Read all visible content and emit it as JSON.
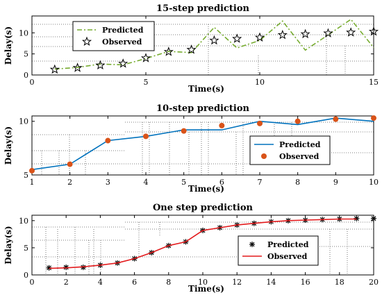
{
  "chart_data": [
    {
      "type": "line",
      "title": "15-step prediction",
      "xlabel": "Time(s)",
      "ylabel": "Delay(s)",
      "xlim": [
        0,
        15
      ],
      "ylim": [
        0,
        14
      ],
      "xticks": [
        0,
        5,
        10,
        15
      ],
      "yticks": [
        0,
        5,
        10
      ],
      "legend_position": "top-left",
      "series": [
        {
          "name": "Predicted",
          "style": "dash-dot line",
          "color": "#77AC30",
          "x": [
            1,
            2,
            3,
            4,
            5,
            6,
            7,
            8,
            9,
            10,
            11,
            12,
            13,
            14,
            15
          ],
          "y": [
            1.4,
            1.8,
            2.6,
            2.4,
            3.9,
            5.6,
            5.3,
            11.3,
            6.4,
            8.2,
            12.8,
            5.9,
            9.5,
            13.2,
            6.5
          ]
        },
        {
          "name": "Observed",
          "marker": "pentagram",
          "color": "#000000",
          "x": [
            1,
            2,
            3,
            4,
            5,
            6,
            7,
            8,
            9,
            10,
            11,
            12,
            13,
            14,
            15
          ],
          "y": [
            1.3,
            1.7,
            2.3,
            2.7,
            4.0,
            5.5,
            6.0,
            8.2,
            8.6,
            8.9,
            9.5,
            9.7,
            9.9,
            10.1,
            10.3
          ]
        }
      ]
    },
    {
      "type": "line",
      "title": "10-step prediction",
      "xlabel": "Time(s)",
      "ylabel": "Delay(s)",
      "xlim": [
        1,
        10
      ],
      "ylim": [
        5,
        10.5
      ],
      "xticks": [
        1,
        2,
        3,
        4,
        5,
        6,
        7,
        8,
        9,
        10
      ],
      "yticks": [
        5,
        10
      ],
      "legend_position": "bottom-right",
      "series": [
        {
          "name": "Predicted",
          "style": "solid line",
          "color": "#0072BD",
          "x": [
            1,
            2,
            3,
            4,
            5,
            6,
            7,
            8,
            9,
            10
          ],
          "y": [
            5.5,
            6.0,
            8.2,
            8.6,
            9.2,
            9.2,
            10.0,
            9.7,
            10.3,
            10.0
          ]
        },
        {
          "name": "Observed",
          "marker": "filled circle",
          "color": "#D95319",
          "x": [
            1,
            2,
            3,
            4,
            5,
            6,
            7,
            8,
            9,
            10
          ],
          "y": [
            5.4,
            6.0,
            8.2,
            8.6,
            9.1,
            9.6,
            9.8,
            10.0,
            10.2,
            10.3
          ]
        }
      ]
    },
    {
      "type": "line",
      "title": "One step prediction",
      "xlabel": "Time(s)",
      "ylabel": "Delay(s)",
      "xlim": [
        0,
        20
      ],
      "ylim": [
        0,
        11
      ],
      "xticks": [
        0,
        2,
        4,
        6,
        8,
        10,
        12,
        14,
        16,
        18,
        20
      ],
      "yticks": [
        0,
        5,
        10
      ],
      "legend_position": "bottom-right",
      "series": [
        {
          "name": "Predicted",
          "marker": "asterisk",
          "color": "#000000",
          "x": [
            1,
            2,
            3,
            4,
            5,
            6,
            7,
            8,
            9,
            10,
            11,
            12,
            13,
            14,
            15,
            16,
            17,
            18,
            19,
            20
          ],
          "y": [
            1.3,
            1.4,
            1.4,
            1.8,
            2.2,
            3.0,
            4.1,
            5.4,
            6.1,
            8.2,
            8.7,
            9.2,
            9.5,
            9.8,
            10.0,
            10.1,
            10.2,
            10.3,
            10.4,
            10.4
          ]
        },
        {
          "name": "Observed",
          "style": "solid line",
          "color": "#E31A1C",
          "x": [
            1,
            2,
            3,
            4,
            5,
            6,
            7,
            8,
            9,
            10,
            11,
            12,
            13,
            14,
            15,
            16,
            17,
            18,
            19
          ],
          "y": [
            1.2,
            1.3,
            1.5,
            1.8,
            2.2,
            3.0,
            4.1,
            5.4,
            6.1,
            8.2,
            8.7,
            9.2,
            9.5,
            9.8,
            10.0,
            10.1,
            10.2,
            10.3,
            10.3
          ]
        }
      ]
    }
  ]
}
